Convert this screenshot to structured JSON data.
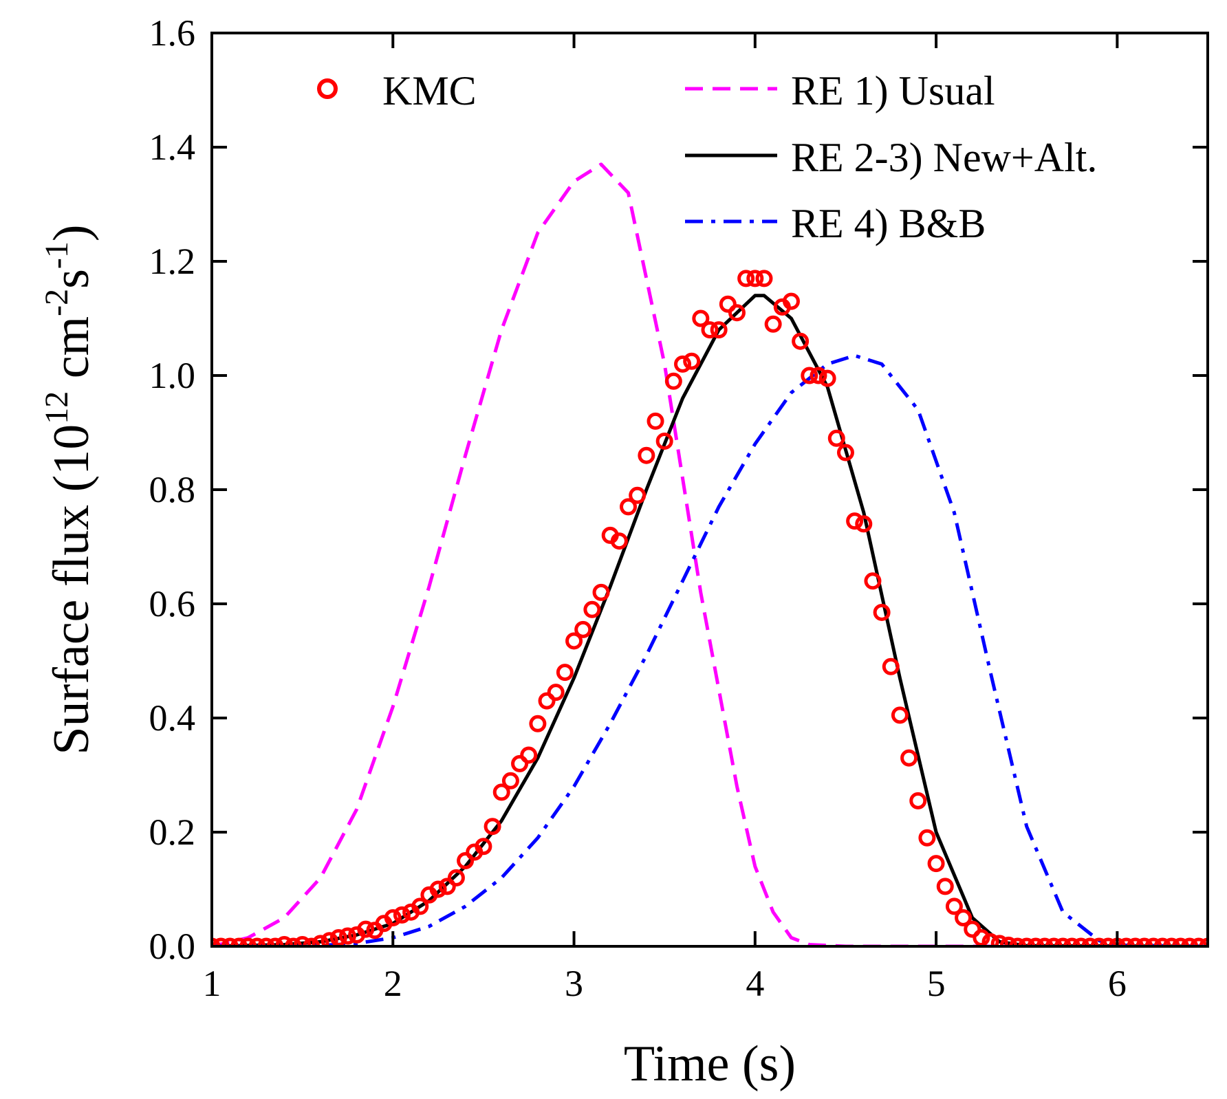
{
  "chart_data": {
    "type": "line",
    "title": "",
    "xlabel": "Time (s)",
    "ylabel": {
      "prefix": "Surface flux (10",
      "exp1": "12",
      "mid": " cm",
      "exp2": "-2",
      "mid2": "s",
      "exp3": "-1",
      "suffix": ")"
    },
    "xlim": [
      1,
      6.5
    ],
    "ylim": [
      0,
      1.6
    ],
    "xticks": [
      1,
      2,
      3,
      4,
      5,
      6
    ],
    "yticks": [
      0,
      0.2,
      0.4,
      0.6,
      0.8,
      1.0,
      1.2,
      1.4,
      1.6
    ],
    "ytick_labels": [
      "0.0",
      "0.2",
      "0.4",
      "0.6",
      "0.8",
      "1.0",
      "1.2",
      "1.4",
      "1.6"
    ],
    "xtick_labels": [
      "1",
      "2",
      "3",
      "4",
      "5",
      "6"
    ],
    "legend": [
      {
        "label": "KMC",
        "style": "circle",
        "color": "#ff0000"
      },
      {
        "label": "RE 1) Usual",
        "style": "dashed",
        "color": "#ff00ff"
      },
      {
        "label": "RE 2-3) New+Alt.",
        "style": "solid",
        "color": "#000000"
      },
      {
        "label": "RE 4) B&B",
        "style": "dashdot",
        "color": "#0000ff"
      }
    ],
    "series": [
      {
        "name": "RE 1) Usual",
        "style": "dashed",
        "color": "#ff00ff",
        "x": [
          1.0,
          1.2,
          1.4,
          1.6,
          1.8,
          2.0,
          2.2,
          2.4,
          2.6,
          2.8,
          3.0,
          3.15,
          3.3,
          3.5,
          3.7,
          3.9,
          4.0,
          4.1,
          4.2,
          4.3,
          4.5,
          5.0,
          6.5
        ],
        "values": [
          0.0,
          0.015,
          0.05,
          0.12,
          0.24,
          0.42,
          0.63,
          0.86,
          1.08,
          1.25,
          1.34,
          1.37,
          1.32,
          1.02,
          0.62,
          0.28,
          0.14,
          0.06,
          0.015,
          0.003,
          0.0,
          0.0,
          0.0
        ]
      },
      {
        "name": "RE 2-3) New+Alt.",
        "style": "solid",
        "color": "#000000",
        "x": [
          1.0,
          1.4,
          1.6,
          1.8,
          2.0,
          2.2,
          2.4,
          2.6,
          2.8,
          3.0,
          3.2,
          3.4,
          3.6,
          3.8,
          4.0,
          4.05,
          4.2,
          4.4,
          4.6,
          4.8,
          5.0,
          5.2,
          5.35,
          5.5,
          6.5
        ],
        "values": [
          0.0,
          0.003,
          0.008,
          0.02,
          0.04,
          0.08,
          0.14,
          0.22,
          0.33,
          0.47,
          0.63,
          0.8,
          0.96,
          1.08,
          1.14,
          1.14,
          1.1,
          0.98,
          0.76,
          0.47,
          0.2,
          0.05,
          0.008,
          0.001,
          0.0
        ]
      },
      {
        "name": "RE 4) B&B",
        "style": "dashdot",
        "color": "#0000ff",
        "x": [
          1.0,
          1.5,
          1.8,
          2.0,
          2.2,
          2.4,
          2.6,
          2.8,
          3.0,
          3.2,
          3.4,
          3.6,
          3.8,
          4.0,
          4.2,
          4.4,
          4.55,
          4.7,
          4.9,
          5.1,
          5.3,
          5.5,
          5.7,
          5.9,
          6.0,
          6.5
        ],
        "values": [
          0.0,
          0.0,
          0.005,
          0.015,
          0.035,
          0.07,
          0.12,
          0.19,
          0.28,
          0.39,
          0.51,
          0.64,
          0.77,
          0.88,
          0.97,
          1.02,
          1.035,
          1.02,
          0.94,
          0.76,
          0.48,
          0.21,
          0.06,
          0.01,
          0.002,
          0.0
        ]
      },
      {
        "name": "KMC",
        "style": "circle",
        "color": "#ff0000",
        "x": [
          1.0,
          1.05,
          1.1,
          1.15,
          1.2,
          1.25,
          1.3,
          1.35,
          1.4,
          1.45,
          1.5,
          1.55,
          1.6,
          1.65,
          1.7,
          1.75,
          1.8,
          1.85,
          1.9,
          1.95,
          2.0,
          2.05,
          2.1,
          2.15,
          2.2,
          2.25,
          2.3,
          2.35,
          2.4,
          2.45,
          2.5,
          2.55,
          2.6,
          2.65,
          2.7,
          2.75,
          2.8,
          2.85,
          2.9,
          2.95,
          3.0,
          3.05,
          3.1,
          3.15,
          3.2,
          3.25,
          3.3,
          3.35,
          3.4,
          3.45,
          3.5,
          3.55,
          3.6,
          3.65,
          3.7,
          3.75,
          3.8,
          3.85,
          3.9,
          3.95,
          4.0,
          4.05,
          4.1,
          4.15,
          4.2,
          4.25,
          4.3,
          4.35,
          4.4,
          4.45,
          4.5,
          4.55,
          4.6,
          4.65,
          4.7,
          4.75,
          4.8,
          4.85,
          4.9,
          4.95,
          5.0,
          5.05,
          5.1,
          5.15,
          5.2,
          5.25,
          5.3,
          5.35,
          5.4,
          5.45,
          5.5,
          5.55,
          5.6,
          5.65,
          5.7,
          5.75,
          5.8,
          5.85,
          5.9,
          5.95,
          6.0,
          6.05,
          6.1,
          6.15,
          6.2,
          6.25,
          6.3,
          6.35,
          6.4,
          6.45,
          6.5
        ],
        "values": [
          0.0,
          0.0,
          0.0,
          0.0,
          0.0,
          0.0,
          0.0,
          0.0,
          0.003,
          0.0,
          0.003,
          0.0,
          0.005,
          0.01,
          0.015,
          0.018,
          0.02,
          0.03,
          0.028,
          0.04,
          0.05,
          0.055,
          0.06,
          0.07,
          0.09,
          0.1,
          0.105,
          0.12,
          0.15,
          0.165,
          0.175,
          0.21,
          0.27,
          0.29,
          0.32,
          0.335,
          0.39,
          0.43,
          0.445,
          0.48,
          0.535,
          0.555,
          0.59,
          0.62,
          0.72,
          0.71,
          0.77,
          0.79,
          0.86,
          0.92,
          0.885,
          0.99,
          1.02,
          1.025,
          1.1,
          1.08,
          1.08,
          1.125,
          1.11,
          1.17,
          1.17,
          1.17,
          1.09,
          1.12,
          1.13,
          1.06,
          1.0,
          1.0,
          0.995,
          0.89,
          0.865,
          0.745,
          0.74,
          0.64,
          0.585,
          0.49,
          0.405,
          0.33,
          0.255,
          0.19,
          0.145,
          0.105,
          0.07,
          0.05,
          0.03,
          0.015,
          0.008,
          0.005,
          0.002,
          0.0,
          0.0,
          0.0,
          0.0,
          0.0,
          0.0,
          0.0,
          0.0,
          0.0,
          0.0,
          0.0,
          0.0,
          0.0,
          0.0,
          0.0,
          0.0,
          0.0,
          0.0,
          0.0,
          0.0,
          0.0,
          0.0
        ]
      }
    ]
  }
}
